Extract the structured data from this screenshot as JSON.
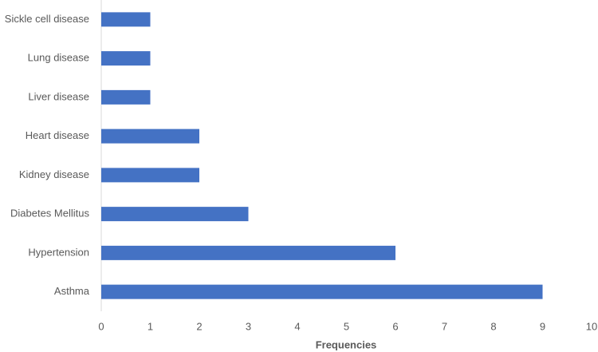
{
  "chart_data": {
    "type": "hbar",
    "x_label": "Frequencies",
    "categories": [
      "Sickle cell disease",
      "Lung disease",
      "Liver disease",
      "Heart disease",
      "Kidney disease",
      "Diabetes Mellitus",
      "Hypertension",
      "Asthma"
    ],
    "values": [
      1,
      1,
      1,
      2,
      2,
      3,
      6,
      9
    ],
    "color": "#4472c4",
    "xlim": [
      0,
      10
    ],
    "xticks": [
      0,
      1,
      2,
      3,
      4,
      5,
      6,
      7,
      8,
      9,
      10
    ],
    "grid": false
  }
}
